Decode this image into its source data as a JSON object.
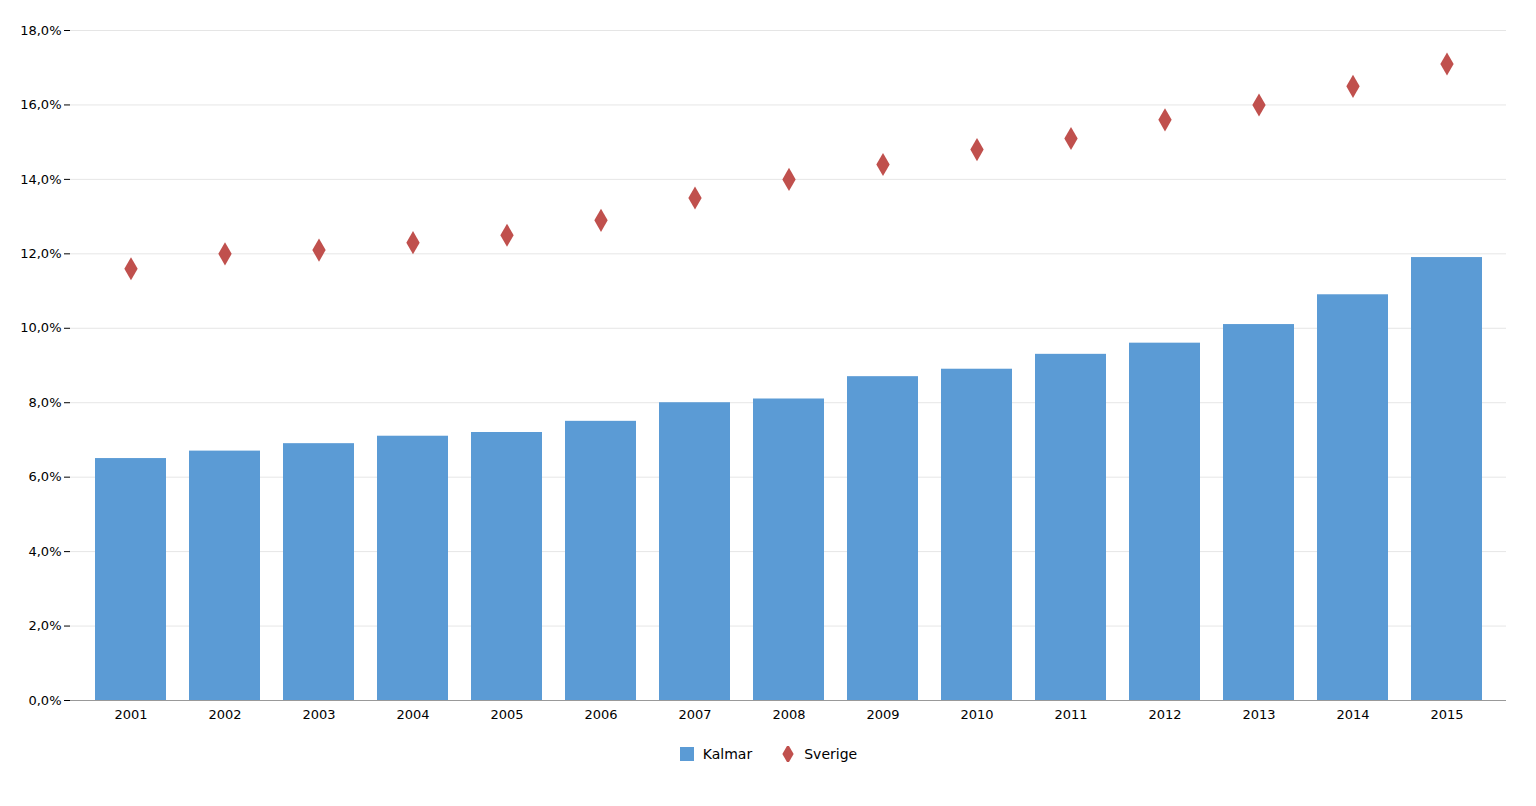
{
  "chart_data": {
    "type": "bar",
    "categories": [
      "2001",
      "2002",
      "2003",
      "2004",
      "2005",
      "2006",
      "2007",
      "2008",
      "2009",
      "2010",
      "2011",
      "2012",
      "2013",
      "2014",
      "2015"
    ],
    "series": [
      {
        "name": "Kalmar",
        "type": "bar",
        "color": "#5B9BD5",
        "values": [
          0.065,
          0.067,
          0.069,
          0.071,
          0.072,
          0.075,
          0.08,
          0.081,
          0.087,
          0.089,
          0.093,
          0.096,
          0.101,
          0.109,
          0.119
        ]
      },
      {
        "name": "Sverige",
        "type": "scatter",
        "marker": "diamond",
        "color": "#C0504D",
        "values": [
          0.116,
          0.12,
          0.121,
          0.123,
          0.125,
          0.129,
          0.135,
          0.14,
          0.144,
          0.148,
          0.151,
          0.156,
          0.16,
          0.165,
          0.171
        ]
      }
    ],
    "ylim": [
      0,
      0.18
    ],
    "yticks": [
      {
        "value": 0.0,
        "label": "0,0%"
      },
      {
        "value": 0.02,
        "label": "2,0%"
      },
      {
        "value": 0.04,
        "label": "4,0%"
      },
      {
        "value": 0.06,
        "label": "6,0%"
      },
      {
        "value": 0.08,
        "label": "8,0%"
      },
      {
        "value": 0.1,
        "label": "10,0%"
      },
      {
        "value": 0.12,
        "label": "12,0%"
      },
      {
        "value": 0.14,
        "label": "14,0%"
      },
      {
        "value": 0.16,
        "label": "16,0%"
      },
      {
        "value": 0.18,
        "label": "18,0%"
      }
    ],
    "grid": true,
    "legend": "bottom"
  }
}
